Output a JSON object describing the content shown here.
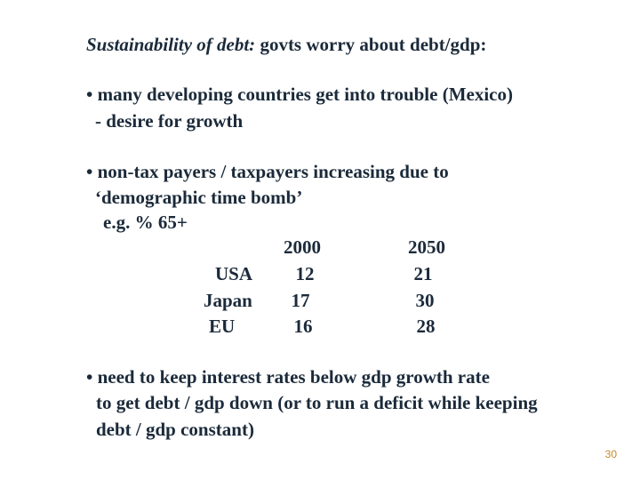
{
  "title": {
    "italic_part": "Sustainability of debt:",
    "rest": " govts worry about debt/gdp:"
  },
  "bullets": [
    {
      "lines": [
        "• many developing countries get into trouble (Mexico)",
        "- desire for growth"
      ]
    },
    {
      "lines": [
        "• non-tax payers / taxpayers increasing due to",
        "‘demographic time bomb’",
        "e.g. % 65+"
      ]
    },
    {
      "lines": [
        "• need to keep interest rates below gdp growth rate",
        "to get debt / gdp down (or to run a deficit while keeping",
        "debt / gdp constant)"
      ]
    }
  ],
  "table": {
    "columns": [
      "2000",
      "2050"
    ],
    "rows": [
      {
        "country": "USA",
        "values": [
          "12",
          "21"
        ]
      },
      {
        "country": "Japan",
        "values": [
          "17",
          "30"
        ]
      },
      {
        "country": "EU",
        "values": [
          "16",
          "28"
        ]
      }
    ]
  },
  "page_number": "30"
}
